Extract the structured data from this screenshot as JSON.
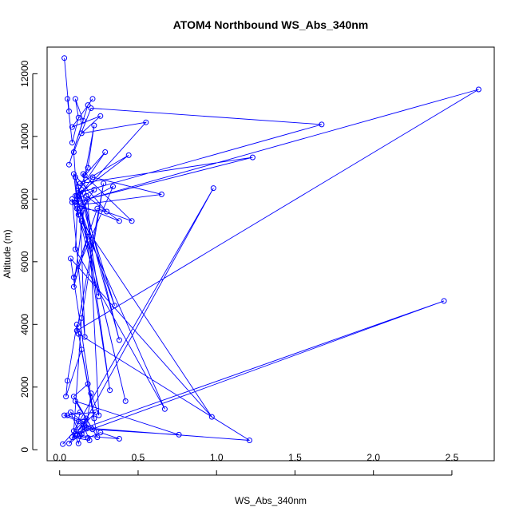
{
  "chart_data": {
    "type": "line",
    "title": "ATOM4 Northbound WS_Abs_340nm",
    "xlabel": "WS_Abs_340nm",
    "ylabel": "Altitude (m)",
    "xlim": [
      -0.08,
      2.77
    ],
    "ylim": [
      -350,
      12850
    ],
    "x_ticks": [
      "0.0",
      "0.5",
      "1.0",
      "1.5",
      "2.0",
      "2.5"
    ],
    "y_ticks": [
      "0",
      "2000",
      "4000",
      "6000",
      "8000",
      "10000",
      "12000"
    ],
    "grid": false,
    "line_color": "#0000ff",
    "marker": "open-circle",
    "series": [
      {
        "x": [
          0.03,
          0.06,
          0.05,
          0.08,
          0.12,
          0.1,
          0.15,
          0.06,
          0.18,
          0.21,
          0.08,
          0.26,
          0.14,
          0.55,
          0.11,
          0.09,
          0.2,
          1.67,
          0.12,
          0.18,
          0.22,
          0.16,
          0.29,
          0.1,
          0.44,
          0.13,
          1.23,
          0.1,
          0.21,
          0.65,
          0.11,
          0.34,
          0.09,
          0.24,
          0.46,
          0.15,
          0.17,
          0.38,
          0.08,
          0.22,
          0.12,
          0.09,
          0.3,
          0.13,
          0.35,
          0.1,
          0.38,
          0.14,
          0.11,
          0.25,
          0.16,
          0.09,
          0.18,
          0.11,
          0.42,
          0.13,
          0.16,
          0.08,
          0.19,
          0.32,
          0.12,
          0.1,
          0.67,
          0.14,
          0.97,
          0.07,
          0.22,
          0.11,
          0.05,
          0.04,
          0.14,
          0.18,
          0.09,
          0.21,
          0.76,
          0.1,
          0.24,
          0.12,
          1.21,
          0.16,
          2.45,
          0.11,
          0.2,
          0.07,
          0.13,
          0.38,
          0.26,
          0.18,
          0.1,
          0.12,
          0.15,
          0.14,
          0.06,
          0.17,
          0.12,
          0.03,
          0.23,
          0.08,
          0.19,
          0.15,
          0.98,
          0.09,
          0.14,
          0.28,
          0.11,
          2.67,
          0.18,
          0.25,
          0.2,
          0.17,
          0.1,
          0.13,
          0.05,
          0.15,
          0.02
        ],
        "y": [
          12500,
          10800,
          11200,
          9800,
          10600,
          11200,
          10500,
          9100,
          11000,
          11200,
          10300,
          10650,
          10100,
          10450,
          8000,
          9500,
          10900,
          10380,
          8200,
          9000,
          10350,
          8750,
          9500,
          8100,
          9400,
          8500,
          9330,
          7900,
          8700,
          8150,
          7800,
          8400,
          5500,
          7700,
          7300,
          8800,
          8100,
          7300,
          7900,
          8300,
          7500,
          8800,
          7600,
          7700,
          4600,
          8700,
          3500,
          8300,
          7700,
          4900,
          7900,
          5200,
          6800,
          8100,
          1550,
          7700,
          3600,
          8000,
          6500,
          1900,
          8400,
          6400,
          1300,
          7300,
          1050,
          6100,
          1000,
          4000,
          2200,
          1700,
          3200,
          2100,
          1700,
          650,
          480,
          1550,
          400,
          3700,
          300,
          700,
          4750,
          480,
          700,
          1200,
          450,
          350,
          550,
          380,
          450,
          200,
          700,
          500,
          200,
          1000,
          900,
          1100,
          1200,
          400,
          300,
          800,
          8350,
          600,
          4200,
          8500,
          3800,
          11500,
          8000,
          1100,
          1800,
          700,
          500,
          1200,
          1100,
          900,
          180
        ]
      }
    ]
  }
}
